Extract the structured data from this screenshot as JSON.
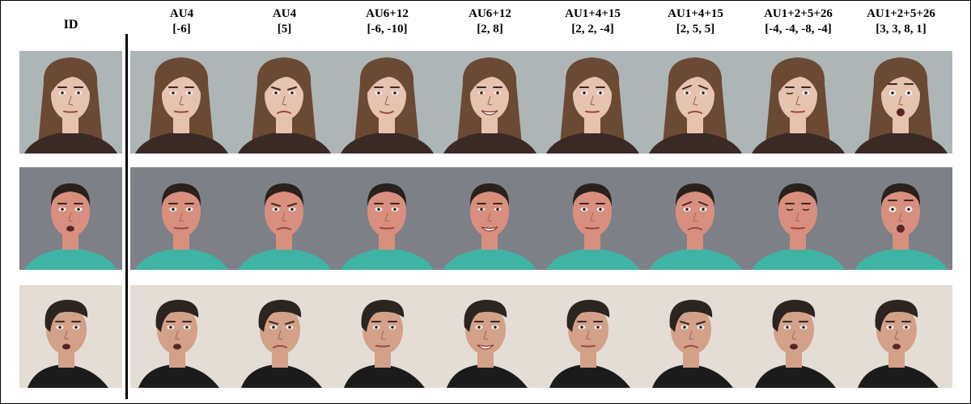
{
  "id_label": "ID",
  "columns": [
    {
      "au": "AU4",
      "values": "[-6]"
    },
    {
      "au": "AU4",
      "values": "[5]"
    },
    {
      "au": "AU6+12",
      "values": "[-6, -10]"
    },
    {
      "au": "AU6+12",
      "values": "[2, 8]"
    },
    {
      "au": "AU1+4+15",
      "values": "[2, 2, -4]"
    },
    {
      "au": "AU1+4+15",
      "values": "[2, 5, 5]"
    },
    {
      "au": "AU1+2+5+26",
      "values": "[-4, -4, -8, -4]"
    },
    {
      "au": "AU1+2+5+26",
      "values": "[3, 3, 8, 1]"
    }
  ],
  "rows": [
    {
      "subject": "young woman with long brown hair",
      "colors": {
        "bg": "#aeb5b7",
        "skin": "#e6c2b0",
        "hair": "#6b4a34",
        "shirt": "#3a2a26"
      },
      "expressions": [
        "neutral",
        "relaxed-brow",
        "frown",
        "soft-smile",
        "big-smile",
        "neutral",
        "sad-frown",
        "wink",
        "surprise"
      ]
    },
    {
      "subject": "young man with short dark hair in teal hoodie",
      "colors": {
        "bg": "#7d8086",
        "skin": "#d98f7e",
        "hair": "#2a211d",
        "shirt": "#3fb3a4"
      },
      "expressions": [
        "open-mouth",
        "neutral",
        "frown",
        "neutral",
        "big-smile",
        "neutral",
        "sad-frown",
        "eyes-closed",
        "surprise"
      ]
    },
    {
      "subject": "man with short hair in dark shirt, three-quarter view",
      "colors": {
        "bg": "#e3ddd6",
        "skin": "#d3a088",
        "hair": "#2b2420",
        "shirt": "#1b1b1b"
      },
      "expressions": [
        "open-mouth",
        "open-mouth",
        "frown",
        "neutral",
        "smile",
        "neutral",
        "frown",
        "open-mouth",
        "open-mouth"
      ]
    }
  ]
}
